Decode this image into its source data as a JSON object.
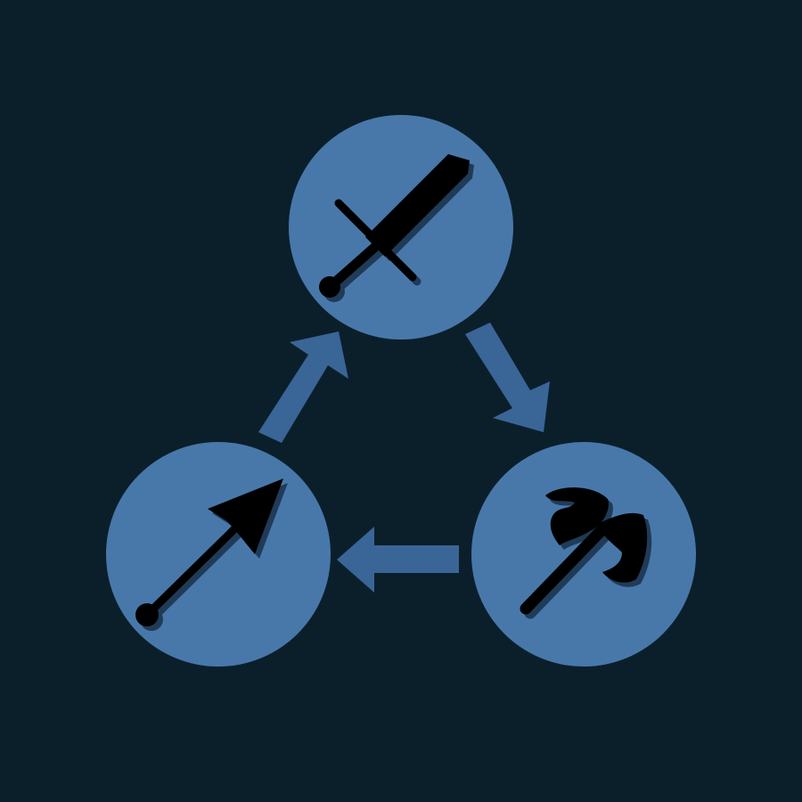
{
  "colors": {
    "background": "#0b1f2b",
    "node_fill": "#4878aa",
    "arrow_fill": "#3a6597",
    "icon_fill": "#000000",
    "icon_shadow": "#203b57"
  },
  "nodes": [
    {
      "id": "sword",
      "icon": "sword-icon"
    },
    {
      "id": "axe",
      "icon": "battle-axe-icon"
    },
    {
      "id": "spear",
      "icon": "spear-icon"
    }
  ],
  "cycle": [
    {
      "from": "sword",
      "to": "axe",
      "icon": "arrow-right-down-icon"
    },
    {
      "from": "axe",
      "to": "spear",
      "icon": "arrow-left-icon"
    },
    {
      "from": "spear",
      "to": "sword",
      "icon": "arrow-up-right-icon"
    }
  ]
}
